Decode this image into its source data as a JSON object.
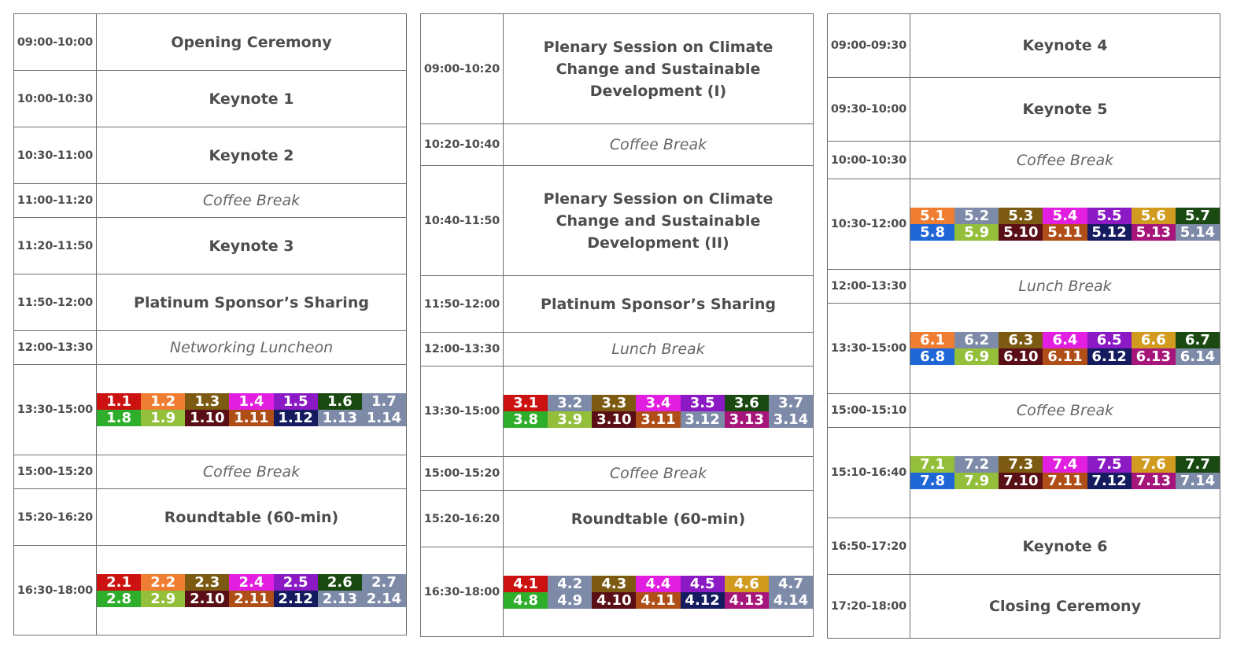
{
  "days": [
    {
      "rows": [
        {
          "time": "09:00-10:00",
          "type": "bold",
          "label": "Opening Ceremony"
        },
        {
          "time": "10:00-10:30",
          "type": "bold",
          "label": "Keynote 1"
        },
        {
          "time": "10:30-11:00",
          "type": "bold",
          "label": "Keynote 2"
        },
        {
          "time": "11:00-11:20",
          "type": "break",
          "label": "Coffee Break"
        },
        {
          "time": "11:20-11:50",
          "type": "bold",
          "label": "Keynote 3"
        },
        {
          "time": "11:50-12:00",
          "type": "bold",
          "label": "Platinum Sponsor’s Sharing"
        },
        {
          "time": "12:00-13:30",
          "type": "break",
          "label": "Networking Luncheon"
        },
        {
          "time": "13:30-15:00",
          "type": "grid",
          "sessions": [
            {
              "label": "1.1",
              "color": "#cc1111"
            },
            {
              "label": "1.2",
              "color": "#f07e32"
            },
            {
              "label": "1.3",
              "color": "#7c5a12"
            },
            {
              "label": "1.4",
              "color": "#e21fe0"
            },
            {
              "label": "1.5",
              "color": "#8b19c4"
            },
            {
              "label": "1.6",
              "color": "#1a4a12"
            },
            {
              "label": "1.7",
              "color": "#7d8aa8"
            },
            {
              "label": "1.8",
              "color": "#2fae2c"
            },
            {
              "label": "1.9",
              "color": "#93bf3a"
            },
            {
              "label": "1.10",
              "color": "#5a0f17"
            },
            {
              "label": "1.11",
              "color": "#b04e17"
            },
            {
              "label": "1.12",
              "color": "#141b5e"
            },
            {
              "label": "1.13",
              "color": "#7d8aa8"
            },
            {
              "label": "1.14",
              "color": "#7d8aa8"
            }
          ]
        },
        {
          "time": "15:00-15:20",
          "type": "break",
          "label": "Coffee Break"
        },
        {
          "time": "15:20-16:20",
          "type": "bold",
          "label": "Roundtable (60-min)"
        },
        {
          "time": "16:30-18:00",
          "type": "grid",
          "sessions": [
            {
              "label": "2.1",
              "color": "#cc1111"
            },
            {
              "label": "2.2",
              "color": "#f07e32"
            },
            {
              "label": "2.3",
              "color": "#7c5a12"
            },
            {
              "label": "2.4",
              "color": "#e21fe0"
            },
            {
              "label": "2.5",
              "color": "#8b19c4"
            },
            {
              "label": "2.6",
              "color": "#1a4a12"
            },
            {
              "label": "2.7",
              "color": "#7d8aa8"
            },
            {
              "label": "2.8",
              "color": "#2fae2c"
            },
            {
              "label": "2.9",
              "color": "#93bf3a"
            },
            {
              "label": "2.10",
              "color": "#5a0f17"
            },
            {
              "label": "2.11",
              "color": "#b04e17"
            },
            {
              "label": "2.12",
              "color": "#141b5e"
            },
            {
              "label": "2.13",
              "color": "#7d8aa8"
            },
            {
              "label": "2.14",
              "color": "#7d8aa8"
            }
          ]
        }
      ]
    },
    {
      "rows": [
        {
          "time": "09:00-10:20",
          "type": "bold",
          "label": "Plenary Session on Climate Change and Sustainable Development (I)"
        },
        {
          "time": "10:20-10:40",
          "type": "break",
          "label": "Coffee Break"
        },
        {
          "time": "10:40-11:50",
          "type": "bold",
          "label": "Plenary Session on Climate Change and Sustainable Development (II)"
        },
        {
          "time": "11:50-12:00",
          "type": "bold",
          "label": "Platinum Sponsor’s Sharing"
        },
        {
          "time": "12:00-13:30",
          "type": "break",
          "label": "Lunch Break"
        },
        {
          "time": "13:30-15:00",
          "type": "grid",
          "sessions": [
            {
              "label": "3.1",
              "color": "#cc1111"
            },
            {
              "label": "3.2",
              "color": "#7d8aa8"
            },
            {
              "label": "3.3",
              "color": "#7c5a12"
            },
            {
              "label": "3.4",
              "color": "#e21fe0"
            },
            {
              "label": "3.5",
              "color": "#8b19c4"
            },
            {
              "label": "3.6",
              "color": "#1a4a12"
            },
            {
              "label": "3.7",
              "color": "#7d8aa8"
            },
            {
              "label": "3.8",
              "color": "#2fae2c"
            },
            {
              "label": "3.9",
              "color": "#93bf3a"
            },
            {
              "label": "3.10",
              "color": "#5a0f17"
            },
            {
              "label": "3.11",
              "color": "#b04e17"
            },
            {
              "label": "3.12",
              "color": "#7d8aa8"
            },
            {
              "label": "3.13",
              "color": "#a5157a"
            },
            {
              "label": "3.14",
              "color": "#7d8aa8"
            }
          ]
        },
        {
          "time": "15:00-15:20",
          "type": "break",
          "label": "Coffee Break"
        },
        {
          "time": "15:20-16:20",
          "type": "bold",
          "label": "Roundtable (60-min)"
        },
        {
          "time": "16:30-18:00",
          "type": "grid",
          "sessions": [
            {
              "label": "4.1",
              "color": "#cc1111"
            },
            {
              "label": "4.2",
              "color": "#7d8aa8"
            },
            {
              "label": "4.3",
              "color": "#7c5a12"
            },
            {
              "label": "4.4",
              "color": "#e21fe0"
            },
            {
              "label": "4.5",
              "color": "#8b19c4"
            },
            {
              "label": "4.6",
              "color": "#d19b1f"
            },
            {
              "label": "4.7",
              "color": "#7d8aa8"
            },
            {
              "label": "4.8",
              "color": "#2fae2c"
            },
            {
              "label": "4.9",
              "color": "#7d8aa8"
            },
            {
              "label": "4.10",
              "color": "#5a0f17"
            },
            {
              "label": "4.11",
              "color": "#b04e17"
            },
            {
              "label": "4.12",
              "color": "#141b5e"
            },
            {
              "label": "4.13",
              "color": "#a5157a"
            },
            {
              "label": "4.14",
              "color": "#7d8aa8"
            }
          ]
        }
      ]
    },
    {
      "rows": [
        {
          "time": "09:00-09:30",
          "type": "bold",
          "label": "Keynote 4"
        },
        {
          "time": "09:30-10:00",
          "type": "bold",
          "label": "Keynote 5"
        },
        {
          "time": "10:00-10:30",
          "type": "break",
          "label": "Coffee Break"
        },
        {
          "time": "10:30-12:00",
          "type": "grid",
          "sessions": [
            {
              "label": "5.1",
              "color": "#f07e32"
            },
            {
              "label": "5.2",
              "color": "#7d8aa8"
            },
            {
              "label": "5.3",
              "color": "#7c5a12"
            },
            {
              "label": "5.4",
              "color": "#e21fe0"
            },
            {
              "label": "5.5",
              "color": "#8b19c4"
            },
            {
              "label": "5.6",
              "color": "#d19b1f"
            },
            {
              "label": "5.7",
              "color": "#1a4a12"
            },
            {
              "label": "5.8",
              "color": "#1f66d6"
            },
            {
              "label": "5.9",
              "color": "#93bf3a"
            },
            {
              "label": "5.10",
              "color": "#5a0f17"
            },
            {
              "label": "5.11",
              "color": "#b04e17"
            },
            {
              "label": "5.12",
              "color": "#141b5e"
            },
            {
              "label": "5.13",
              "color": "#a5157a"
            },
            {
              "label": "5.14",
              "color": "#7d8aa8"
            }
          ]
        },
        {
          "time": "12:00-13:30",
          "type": "break",
          "label": "Lunch Break"
        },
        {
          "time": "13:30-15:00",
          "type": "grid",
          "sessions": [
            {
              "label": "6.1",
              "color": "#f07e32"
            },
            {
              "label": "6.2",
              "color": "#7d8aa8"
            },
            {
              "label": "6.3",
              "color": "#7c5a12"
            },
            {
              "label": "6.4",
              "color": "#e21fe0"
            },
            {
              "label": "6.5",
              "color": "#8b19c4"
            },
            {
              "label": "6.6",
              "color": "#d19b1f"
            },
            {
              "label": "6.7",
              "color": "#1a4a12"
            },
            {
              "label": "6.8",
              "color": "#1f66d6"
            },
            {
              "label": "6.9",
              "color": "#93bf3a"
            },
            {
              "label": "6.10",
              "color": "#5a0f17"
            },
            {
              "label": "6.11",
              "color": "#b04e17"
            },
            {
              "label": "6.12",
              "color": "#141b5e"
            },
            {
              "label": "6.13",
              "color": "#a5157a"
            },
            {
              "label": "6.14",
              "color": "#7d8aa8"
            }
          ]
        },
        {
          "time": "15:00-15:10",
          "type": "break",
          "label": "Coffee Break"
        },
        {
          "time": "15:10-16:40",
          "type": "grid",
          "sessions": [
            {
              "label": "7.1",
              "color": "#93bf3a"
            },
            {
              "label": "7.2",
              "color": "#7d8aa8"
            },
            {
              "label": "7.3",
              "color": "#7c5a12"
            },
            {
              "label": "7.4",
              "color": "#e21fe0"
            },
            {
              "label": "7.5",
              "color": "#8b19c4"
            },
            {
              "label": "7.6",
              "color": "#d19b1f"
            },
            {
              "label": "7.7",
              "color": "#1a4a12"
            },
            {
              "label": "7.8",
              "color": "#1f66d6"
            },
            {
              "label": "7.9",
              "color": "#93bf3a"
            },
            {
              "label": "7.10",
              "color": "#5a0f17"
            },
            {
              "label": "7.11",
              "color": "#b04e17"
            },
            {
              "label": "7.12",
              "color": "#141b5e"
            },
            {
              "label": "7.13",
              "color": "#a5157a"
            },
            {
              "label": "7.14",
              "color": "#7d8aa8"
            }
          ]
        },
        {
          "time": "16:50-17:20",
          "type": "bold",
          "label": "Keynote 6"
        },
        {
          "time": "17:20-18:00",
          "type": "bold",
          "label": "Closing Ceremony"
        }
      ]
    }
  ]
}
